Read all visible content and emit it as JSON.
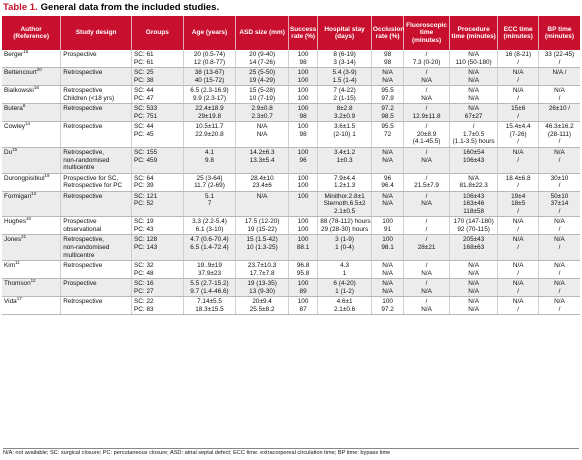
{
  "title": {
    "tag": "Table 1.",
    "text": "General data from the included studies."
  },
  "columns": [
    "Author (Reference)",
    "Study design",
    "Groups",
    "Age (years)",
    "ASD size (mm)",
    "Success rate (%)",
    "Hospital stay (days)",
    "Occlusion rate (%)",
    "Fluoroscopic time (minutes)",
    "Procedure time (minutes)",
    "ECC time (minutes)",
    "BP time (minutes)"
  ],
  "rows": [
    {
      "author": "Berger",
      "ref": "16",
      "design": [
        "Prospective"
      ],
      "groups": [
        "SC: 61",
        "PC: 61"
      ],
      "age": [
        "20 (0.5-74)",
        "12 (0.8-77)"
      ],
      "asd": [
        "20 (9-40)",
        "14 (7-26)"
      ],
      "success": [
        "100",
        "98"
      ],
      "stay": [
        "8 (6-19)",
        "3 (3-14)"
      ],
      "occlusion": [
        "98",
        "98"
      ],
      "fluoro": [
        "/",
        "7.3 (0-20)"
      ],
      "procedure": [
        "N/A",
        "110 (50-180)"
      ],
      "ecc": [
        "16 (8-21)",
        "/"
      ],
      "bp": [
        "33 (22-45)",
        "/"
      ]
    },
    {
      "author": "Bettencourt",
      "ref": "20",
      "design": [
        "Retrospective"
      ],
      "groups": [
        "SC: 25",
        "PC: 38"
      ],
      "age": [
        "38 (13-67)",
        "40 (15-72)"
      ],
      "asd": [
        "25 (5-50)",
        "19 (4-29)"
      ],
      "success": [
        "100",
        "100"
      ],
      "stay": [
        "5.4 (3-9)",
        "1.5 (1-4)"
      ],
      "occlusion": [
        "N/A",
        "N/A"
      ],
      "fluoro": [
        "/",
        "N/A"
      ],
      "procedure": [
        "N/A",
        "N/A"
      ],
      "ecc": [
        "N/A",
        "/"
      ],
      "bp": [
        "N/A /",
        ""
      ]
    },
    {
      "author": "Bialkowski",
      "ref": "18",
      "design": [
        "Retrospective",
        "Children (<18 yrs)"
      ],
      "groups": [
        "SC: 44",
        "PC: 47"
      ],
      "age": [
        "6.5 (2.3-16.9)",
        "9.9 (2.3-17)"
      ],
      "asd": [
        "15 (5-28)",
        "10 (7-19)"
      ],
      "success": [
        "100",
        "100"
      ],
      "stay": [
        "7 (4-22)",
        "2 (1-15)"
      ],
      "occlusion": [
        "95.5",
        "97.9"
      ],
      "fluoro": [
        "/",
        "N/A"
      ],
      "procedure": [
        "N/A",
        "N/A"
      ],
      "ecc": [
        "N/A",
        "/"
      ],
      "bp": [
        "N/A",
        "/"
      ]
    },
    {
      "author": "Butera",
      "ref": "8",
      "design": [
        "Retrospective"
      ],
      "groups": [
        "SC: 533",
        "PC: 751"
      ],
      "age": [
        "22.4±18.9",
        "29±19.8"
      ],
      "asd": [
        "2.9±0.8",
        "2.3±0.7"
      ],
      "success": [
        "100",
        "98"
      ],
      "stay": [
        "8±2.8",
        "3.2±0.9"
      ],
      "occlusion": [
        "97.2",
        "98.5"
      ],
      "fluoro": [
        "/",
        "12.9±11.8"
      ],
      "procedure": [
        "N/A",
        "67±27"
      ],
      "ecc": [
        "15±6",
        "/"
      ],
      "bp": [
        "26±10 /",
        ""
      ]
    },
    {
      "author": "Cowley",
      "ref": "14",
      "design": [
        "Retrospective"
      ],
      "groups": [
        "SC: 44",
        "PC: 45"
      ],
      "age": [
        "10.5±11.7",
        "22.9±20.8"
      ],
      "asd": [
        "N/A",
        "N/A"
      ],
      "success": [
        "100",
        "98"
      ],
      "stay": [
        "3.6±1.5",
        "(2-10) 1"
      ],
      "occlusion": [
        "95.5",
        "72"
      ],
      "fluoro": [
        "/",
        "20±8.9",
        "(4.1-45.5)"
      ],
      "procedure": [
        "/",
        "1.7±0.5",
        "(1.1-3.5) hours"
      ],
      "ecc": [
        "15.4±4.4",
        "(7-26)",
        "/"
      ],
      "bp": [
        "46.3±16.2",
        "(28-111)",
        "/"
      ]
    },
    {
      "author": "Du",
      "ref": "15",
      "design": [
        "Retrospective,",
        "non-randomised",
        "multicentre"
      ],
      "groups": [
        "SC: 155",
        "PC: 459"
      ],
      "age": [
        "4.1",
        "9.8"
      ],
      "asd": [
        "14.2±6.3",
        "13.3±5.4"
      ],
      "success": [
        "100",
        "96"
      ],
      "stay": [
        "3.4±1.2",
        "1±0.3"
      ],
      "occlusion": [
        "N/A",
        "N/A"
      ],
      "fluoro": [
        "/",
        "N/A"
      ],
      "procedure": [
        "160±54",
        "106±43"
      ],
      "ecc": [
        "N/A",
        "/"
      ],
      "bp": [
        "N/A",
        "/"
      ]
    },
    {
      "author": "Durongpisitkul",
      "ref": "19",
      "design": [
        "Prospective for SC,",
        "Retrospective for PC"
      ],
      "groups": [
        "SC: 64",
        "PC: 39"
      ],
      "age": [
        "25 (3-64)",
        "11.7 (2-69)"
      ],
      "asd": [
        "28.4±10",
        "23.4±6"
      ],
      "success": [
        "100",
        "100"
      ],
      "stay": [
        "7.9±4.4",
        "1.2±1.3"
      ],
      "occlusion": [
        "96",
        "96.4"
      ],
      "fluoro": [
        "/",
        "21.5±7.9"
      ],
      "procedure": [
        "N/A",
        "81.8±22.3"
      ],
      "ecc": [
        "18.4±6.8",
        "/"
      ],
      "bp": [
        "30±10",
        "/"
      ]
    },
    {
      "author": "Formigari",
      "ref": "13",
      "design": [
        "Retrospective"
      ],
      "groups": [
        "SC: 121",
        "PC: 52"
      ],
      "age": [
        "5.1",
        "7"
      ],
      "asd": [
        "N/A",
        ""
      ],
      "success": [
        "100",
        ""
      ],
      "stay": [
        "Minithor.2.8±1",
        "Sternoth.6.5±2",
        "2.1±0.5"
      ],
      "occlusion": [
        "N/A",
        "N/A"
      ],
      "fluoro": [
        "/",
        "N/A"
      ],
      "procedure": [
        "106±43",
        "163±46",
        "118±58"
      ],
      "ecc": [
        "19±4",
        "18±5",
        "/"
      ],
      "bp": [
        "50±10",
        "37±14",
        "/"
      ]
    },
    {
      "author": "Hughes",
      "ref": "10",
      "design": [
        "Prospective",
        "observational"
      ],
      "groups": [
        "SC: 19",
        "PC: 43"
      ],
      "age": [
        "3.3 (2.2-5.4)",
        "6.1 (3-10)"
      ],
      "asd": [
        "17.5 (12-20)",
        "19 (15-22)"
      ],
      "success": [
        "100",
        "100"
      ],
      "stay": [
        "88 (78-112) hours",
        "29 (28-30) hours"
      ],
      "occlusion": [
        "100",
        "91"
      ],
      "fluoro": [
        "/",
        "/"
      ],
      "procedure": [
        "170 (147-180)",
        "92 (70-115)"
      ],
      "ecc": [
        "N/A",
        "/"
      ],
      "bp": [
        "N/A",
        "/"
      ]
    },
    {
      "author": "Jones",
      "ref": "21",
      "design": [
        "Retrospective,",
        "non-randomised",
        "multicentre"
      ],
      "groups": [
        "SC: 128",
        "PC: 143"
      ],
      "age": [
        "4.7 (0.6-70.4)",
        "6.5 (1.4-72.4)"
      ],
      "asd": [
        "15 (1.5-42)",
        "10 (1.3-25)"
      ],
      "success": [
        "100",
        "88.1"
      ],
      "stay": [
        "3 (1-9)",
        "1 (0-4)"
      ],
      "occlusion": [
        "100",
        "98.1"
      ],
      "fluoro": [
        "/",
        "28±21"
      ],
      "procedure": [
        "205±43",
        "168±63"
      ],
      "ecc": [
        "N/A",
        "/"
      ],
      "bp": [
        "N/A",
        "/"
      ]
    },
    {
      "author": "Kim",
      "ref": "11",
      "design": [
        "Retrospective"
      ],
      "groups": [
        "SC: 32",
        "PC: 48"
      ],
      "age": [
        "19..9±19",
        "37.9±23"
      ],
      "asd": [
        "23.7±10.3",
        "17.7±7.8"
      ],
      "success": [
        "96.8",
        "95.8"
      ],
      "stay": [
        "4.3",
        "1"
      ],
      "occlusion": [
        "N/A",
        "N/A"
      ],
      "fluoro": [
        "/",
        "N/A"
      ],
      "procedure": [
        "N/A",
        "N/A"
      ],
      "ecc": [
        "N/A",
        "/"
      ],
      "bp": [
        "N/A",
        "/"
      ]
    },
    {
      "author": "Thomson",
      "ref": "12",
      "design": [
        "Prospective"
      ],
      "groups": [
        "SC: 16",
        "PC: 27"
      ],
      "age": [
        "5.5 (2.7-15.2)",
        "9.7 (1.4-46.6)"
      ],
      "asd": [
        "19 (13-35)",
        "13 (9-30)"
      ],
      "success": [
        "100",
        "89"
      ],
      "stay": [
        "6 (4-20)",
        "1 (1-2)"
      ],
      "occlusion": [
        "N/A",
        "N/A"
      ],
      "fluoro": [
        "/",
        "N/A"
      ],
      "procedure": [
        "N/A",
        "N/A"
      ],
      "ecc": [
        "N/A",
        "/"
      ],
      "bp": [
        "N/A",
        "/"
      ]
    },
    {
      "author": "Vida",
      "ref": "17",
      "design": [
        "Retrospective"
      ],
      "groups": [
        "SC: 22",
        "PC: 83"
      ],
      "age": [
        "7.14±5.5",
        "18.3±15.5"
      ],
      "asd": [
        "20±9.4",
        "25.5±8.2"
      ],
      "success": [
        "100",
        "87"
      ],
      "stay": [
        "4.6±1",
        "2.1±0.6"
      ],
      "occlusion": [
        "100",
        "97.2"
      ],
      "fluoro": [
        "/",
        "N/A"
      ],
      "procedure": [
        "N/A",
        "N/A"
      ],
      "ecc": [
        "N/A",
        "/"
      ],
      "bp": [
        "N/A",
        "/"
      ]
    }
  ],
  "footnote": "N/A: not available; SC: surgical closure; PC: percutaneous closure; ASD: atrial septal defect; ECC time: extracorporeal circulation time; BP time: bypass time"
}
